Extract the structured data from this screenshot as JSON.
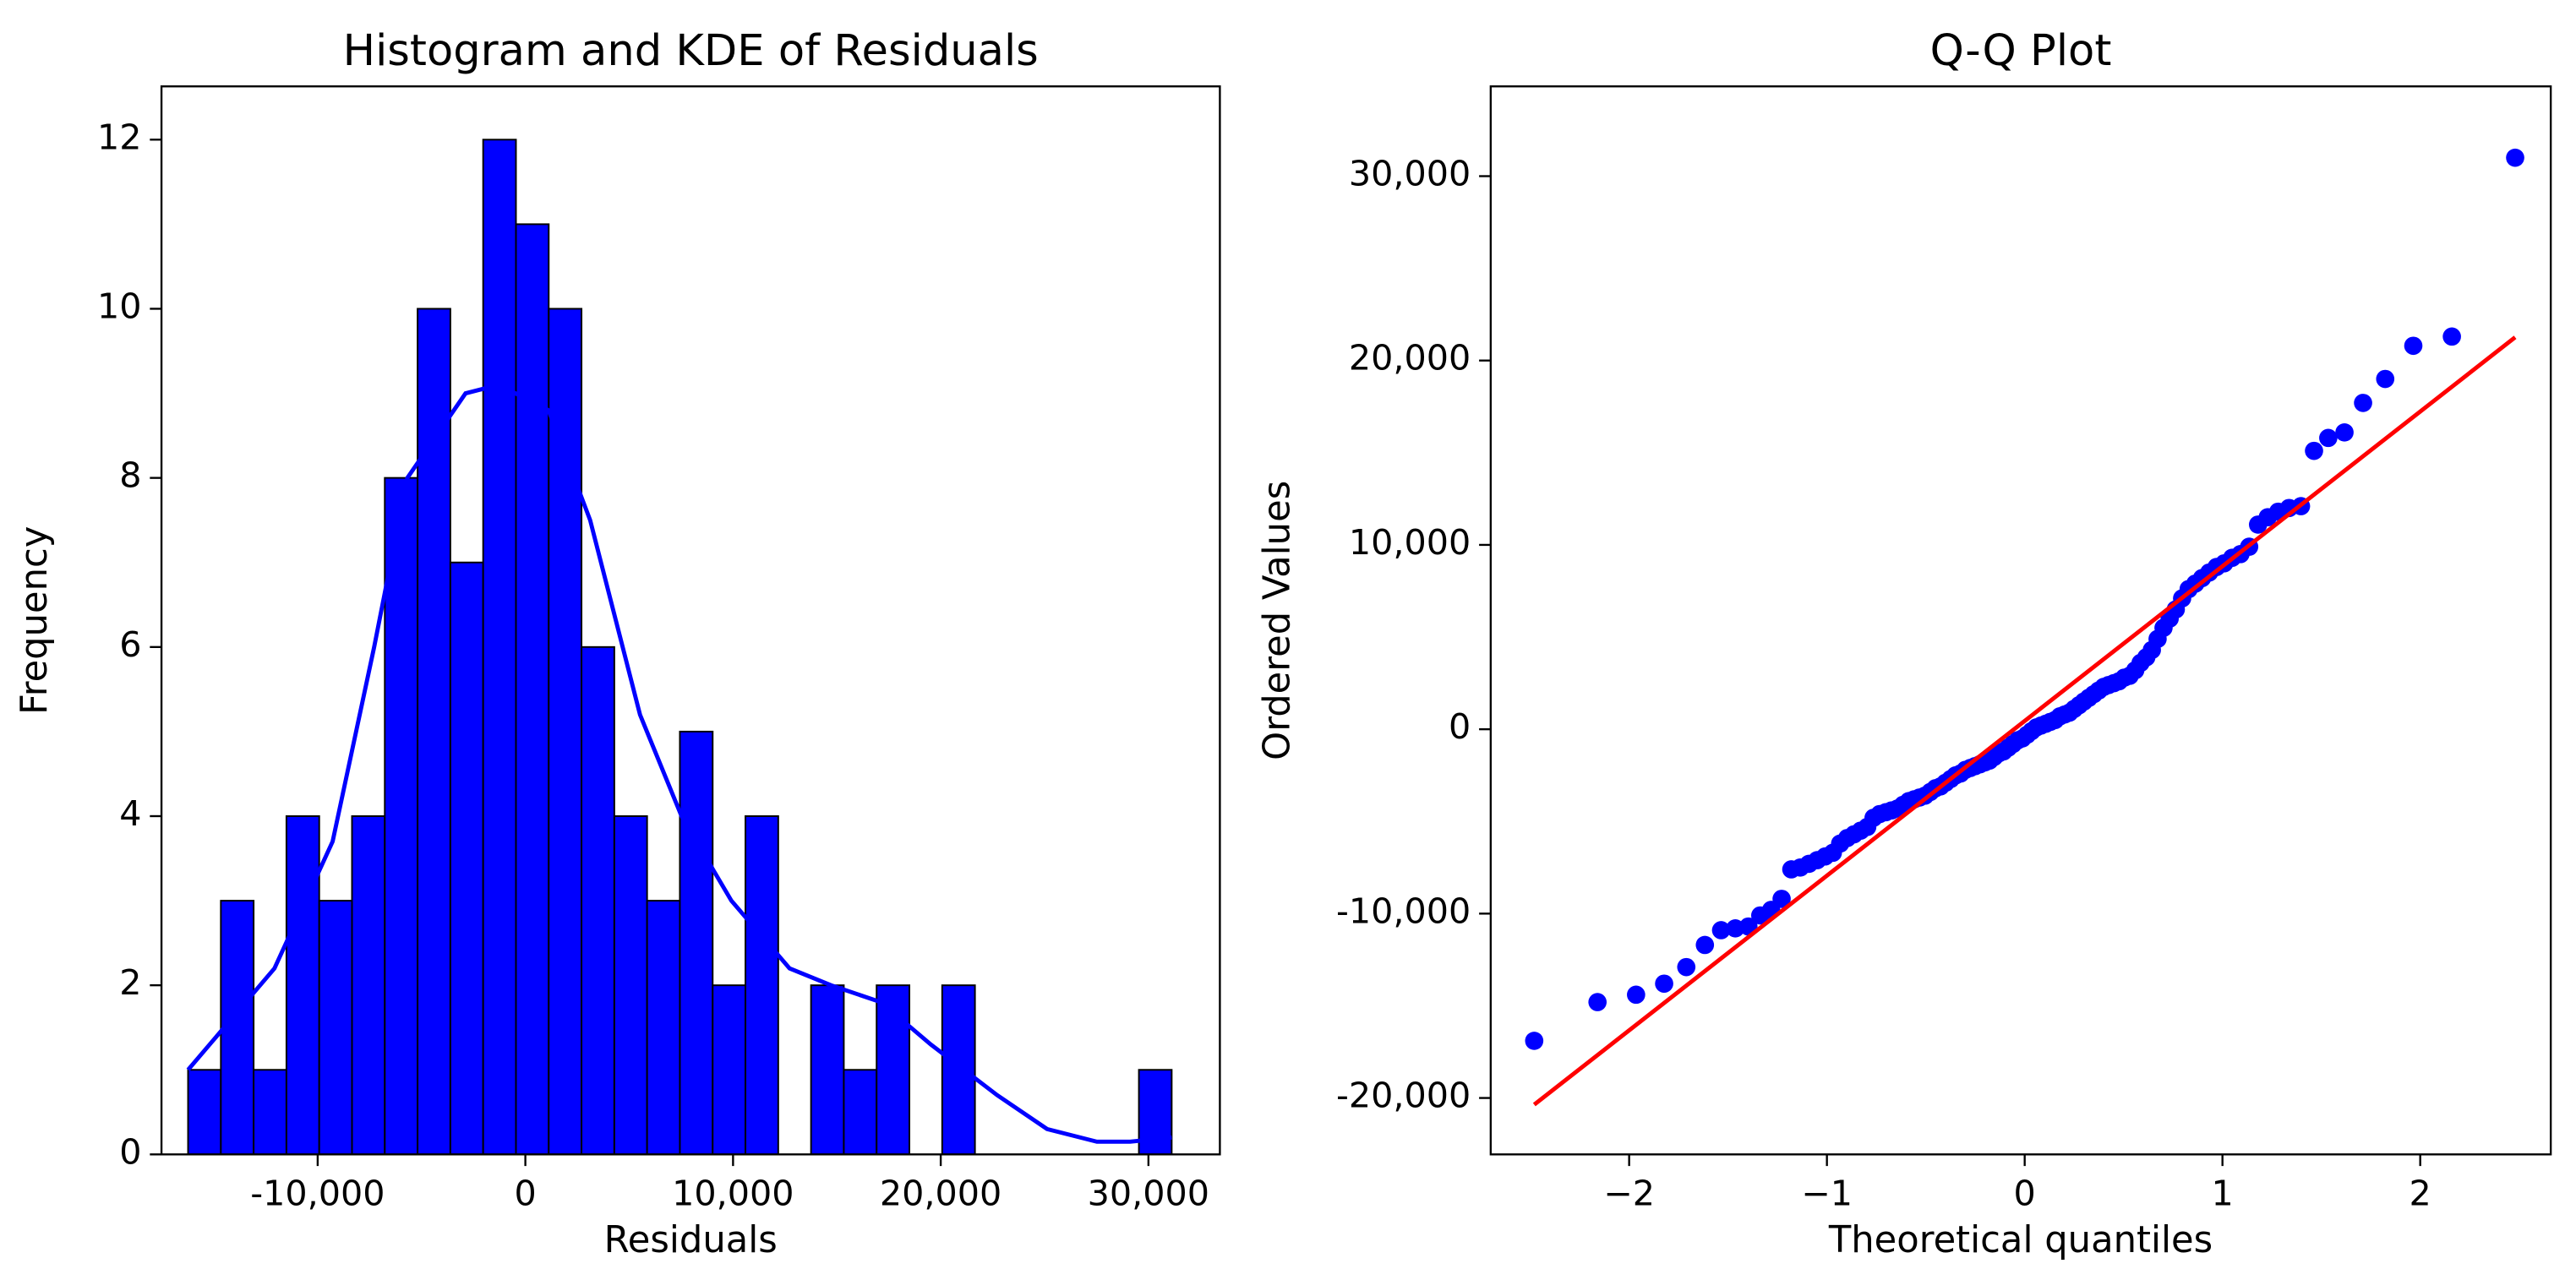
{
  "chart_data": [
    {
      "type": "histogram",
      "title": "Histogram and KDE of Residuals",
      "xlabel": "Residuals",
      "ylabel": "Frequency",
      "bins": [
        -16240,
        -14661,
        -13083,
        -11504,
        -9925,
        -8347,
        -6768,
        -5189,
        -3611,
        -2032,
        -453,
        1125,
        2704,
        4283,
        5861,
        7440,
        9019,
        10597,
        12176,
        13755,
        15333,
        16912,
        18491,
        20069,
        21648,
        23227,
        24805,
        26384,
        27963,
        29541,
        31120
      ],
      "values": [
        1,
        3,
        1,
        4,
        3,
        4,
        8,
        10,
        7,
        12,
        11,
        10,
        6,
        4,
        3,
        5,
        2,
        4,
        0,
        2,
        1,
        2,
        0,
        2,
        0,
        0,
        0,
        0,
        0,
        1
      ],
      "color": "#0000ff",
      "edgecolor": "#000000",
      "kde": {
        "x": [
          -16240,
          -12080,
          -9280,
          -7280,
          -5680,
          -2880,
          -1280,
          1120,
          3120,
          5520,
          7520,
          9920,
          12720,
          14720,
          17120,
          19520,
          22720,
          25120,
          27520,
          29120,
          31120
        ],
        "values": [
          1.0,
          2.2,
          3.7,
          6.0,
          8.0,
          9.0,
          9.1,
          8.8,
          7.5,
          5.2,
          4.0,
          3.0,
          2.2,
          2.0,
          1.8,
          1.3,
          0.7,
          0.3,
          0.15,
          0.15,
          0.2
        ],
        "color": "#0000ff"
      },
      "xlim": [
        -17520,
        33440
      ],
      "ylim": [
        0,
        12.63
      ],
      "xticks": [
        {
          "value": -10000,
          "label": "-10,000"
        },
        0,
        {
          "value": 10000,
          "label": "10,000"
        },
        {
          "value": 20000,
          "label": "20,000"
        },
        {
          "value": 30000,
          "label": "30,000"
        }
      ],
      "yticks": [
        0,
        2,
        4,
        6,
        8,
        10,
        12
      ]
    },
    {
      "type": "scatter",
      "title": "Q-Q Plot",
      "xlabel": "Theoretical quantiles",
      "ylabel": "Ordered Values",
      "color": "#0000ff",
      "x": [
        -2.48,
        -2.16,
        -1.965,
        -1.823,
        -1.711,
        -1.617,
        -1.535,
        -1.463,
        -1.397,
        -1.337,
        -1.282,
        -1.229,
        -1.18,
        -1.135,
        -1.091,
        -1.049,
        -1.009,
        -0.97,
        -0.933,
        -0.897,
        -0.863,
        -0.829,
        -0.796,
        -0.764,
        -0.733,
        -0.702,
        -0.672,
        -0.643,
        -0.615,
        -0.586,
        -0.559,
        -0.531,
        -0.504,
        -0.477,
        -0.451,
        -0.425,
        -0.4,
        -0.374,
        -0.349,
        -0.324,
        -0.299,
        -0.275,
        -0.25,
        -0.226,
        -0.202,
        -0.178,
        -0.154,
        -0.13,
        -0.107,
        -0.083,
        -0.059,
        -0.035,
        -0.012,
        0.012,
        0.035,
        0.059,
        0.083,
        0.107,
        0.13,
        0.154,
        0.178,
        0.202,
        0.226,
        0.25,
        0.275,
        0.299,
        0.324,
        0.349,
        0.374,
        0.4,
        0.425,
        0.451,
        0.477,
        0.504,
        0.531,
        0.559,
        0.586,
        0.615,
        0.643,
        0.672,
        0.702,
        0.733,
        0.764,
        0.796,
        0.829,
        0.863,
        0.897,
        0.933,
        0.97,
        1.009,
        1.049,
        1.091,
        1.135,
        1.18,
        1.229,
        1.282,
        1.337,
        1.397,
        1.463,
        1.535,
        1.617,
        1.711,
        1.823,
        1.965,
        2.16,
        2.48
      ],
      "values": [
        -16900,
        -14800,
        -14400,
        -13800,
        -12900,
        -11700,
        -10900,
        -10800,
        -10700,
        -10100,
        -9800,
        -9200,
        -7600,
        -7500,
        -7300,
        -7100,
        -6900,
        -6700,
        -6200,
        -5900,
        -5700,
        -5500,
        -5300,
        -4800,
        -4600,
        -4500,
        -4400,
        -4300,
        -4100,
        -3900,
        -3800,
        -3700,
        -3600,
        -3400,
        -3200,
        -3100,
        -2900,
        -2700,
        -2500,
        -2400,
        -2200,
        -2100,
        -2000,
        -1900,
        -1800,
        -1700,
        -1500,
        -1300,
        -1200,
        -1000,
        -800,
        -600,
        -500,
        -300,
        -100,
        100,
        200,
        300,
        400,
        500,
        700,
        800,
        900,
        1100,
        1300,
        1500,
        1700,
        1900,
        2100,
        2300,
        2400,
        2500,
        2600,
        2800,
        2900,
        3200,
        3600,
        3900,
        4300,
        4900,
        5500,
        6000,
        6500,
        7100,
        7600,
        7900,
        8200,
        8500,
        8800,
        9000,
        9300,
        9500,
        9900,
        11100,
        11500,
        11800,
        12000,
        12100,
        15100,
        15800,
        16100,
        17700,
        19000,
        20800,
        21300,
        31000
      ],
      "fit": {
        "x": [
          -2.48,
          2.48
        ],
        "values": [
          -20360,
          21260
        ],
        "color": "#ff0000"
      },
      "xlim": [
        -2.7,
        2.66
      ],
      "ylim": [
        -23060,
        34870
      ],
      "xticks": [
        {
          "value": -2,
          "label": "−2"
        },
        {
          "value": -1,
          "label": "−1"
        },
        0,
        1,
        2
      ],
      "yticks": [
        {
          "value": -20000,
          "label": "-20,000"
        },
        {
          "value": -10000,
          "label": "-10,000"
        },
        0,
        {
          "value": 10000,
          "label": "10,000"
        },
        {
          "value": 20000,
          "label": "20,000"
        },
        {
          "value": 30000,
          "label": "30,000"
        }
      ]
    }
  ]
}
